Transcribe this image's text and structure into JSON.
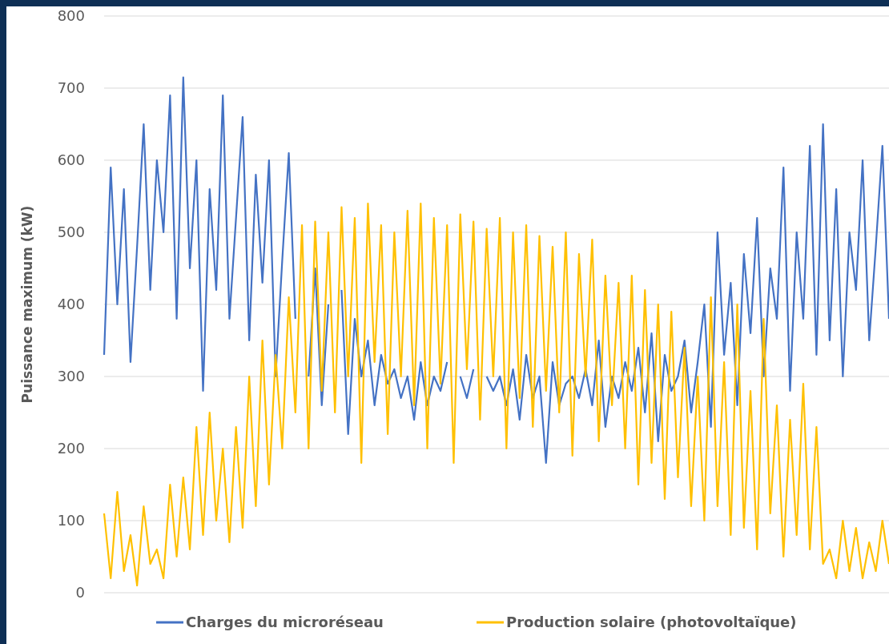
{
  "chart_data": {
    "type": "line",
    "ylabel": "Puissance maximum (kW)",
    "categories": [
      null,
      null,
      null,
      null,
      null,
      null,
      null,
      null,
      null,
      null,
      null,
      null,
      null,
      null,
      null,
      null,
      null,
      null,
      null,
      null,
      null,
      null,
      null,
      null,
      null,
      null,
      null,
      null,
      null,
      null,
      null,
      null,
      null,
      null,
      null,
      null,
      null,
      null,
      null,
      null,
      null,
      null,
      null,
      null,
      null,
      null,
      null,
      null,
      null,
      null,
      null,
      null,
      null,
      null,
      null,
      null,
      null,
      null,
      null,
      null,
      null,
      null,
      null,
      null,
      null,
      null,
      null,
      null,
      null,
      null,
      null,
      null,
      null,
      null,
      null,
      null,
      null,
      null,
      null,
      null,
      null,
      null,
      null,
      null,
      null,
      null,
      null,
      null,
      null,
      null,
      null,
      null,
      null,
      null,
      null,
      null,
      null,
      null,
      null,
      null,
      null,
      null,
      null,
      null,
      null,
      null,
      null,
      null,
      null,
      null,
      null,
      null,
      null,
      null,
      null,
      null,
      null,
      null,
      null,
      null
    ],
    "series": [
      {
        "name": "Charges du microréseau",
        "color": "#4472c4",
        "values": [
          330,
          590,
          400,
          560,
          320,
          480,
          650,
          420,
          600,
          500,
          690,
          380,
          715,
          450,
          600,
          280,
          560,
          420,
          690,
          380,
          520,
          660,
          350,
          580,
          430,
          600,
          300,
          460,
          610,
          380,
          null,
          300,
          450,
          260,
          400,
          null,
          420,
          220,
          380,
          300,
          350,
          260,
          330,
          290,
          310,
          270,
          300,
          240,
          320,
          260,
          300,
          280,
          320,
          null,
          300,
          270,
          310,
          null,
          300,
          280,
          300,
          260,
          310,
          240,
          330,
          270,
          300,
          180,
          320,
          260,
          290,
          300,
          270,
          310,
          260,
          350,
          230,
          300,
          270,
          320,
          280,
          340,
          250,
          360,
          210,
          330,
          280,
          300,
          350,
          250,
          320,
          400,
          230,
          500,
          330,
          430,
          260,
          470,
          360,
          520,
          300,
          450,
          380,
          590,
          280,
          500,
          380,
          620,
          330,
          650,
          350,
          560,
          300,
          500,
          420,
          600,
          350,
          480,
          620,
          380
        ]
      },
      {
        "name": "Production solaire (photovoltaïque)",
        "color": "#ffc000",
        "values": [
          110,
          20,
          140,
          30,
          80,
          10,
          120,
          40,
          60,
          20,
          150,
          50,
          160,
          60,
          230,
          80,
          250,
          100,
          200,
          70,
          230,
          90,
          300,
          120,
          350,
          150,
          330,
          200,
          410,
          250,
          510,
          200,
          515,
          280,
          500,
          250,
          535,
          300,
          520,
          180,
          540,
          320,
          510,
          220,
          500,
          300,
          530,
          260,
          540,
          200,
          520,
          290,
          510,
          180,
          525,
          310,
          515,
          240,
          505,
          300,
          520,
          200,
          500,
          270,
          510,
          230,
          495,
          280,
          480,
          250,
          500,
          190,
          470,
          300,
          490,
          210,
          440,
          260,
          430,
          200,
          440,
          150,
          420,
          180,
          400,
          130,
          390,
          160,
          340,
          120,
          300,
          100,
          410,
          120,
          320,
          80,
          400,
          90,
          280,
          60,
          380,
          110,
          260,
          50,
          240,
          80,
          290,
          60,
          230,
          40,
          60,
          20,
          100,
          30,
          90,
          20,
          70,
          30,
          100,
          40
        ]
      }
    ],
    "ylim": [
      0,
      800
    ],
    "yticks": [
      0,
      100,
      200,
      300,
      400,
      500,
      600,
      700,
      800
    ],
    "grid": "y",
    "legend": "bottom",
    "tick_labels": "y",
    "line_style": "solid",
    "marker": "none"
  }
}
